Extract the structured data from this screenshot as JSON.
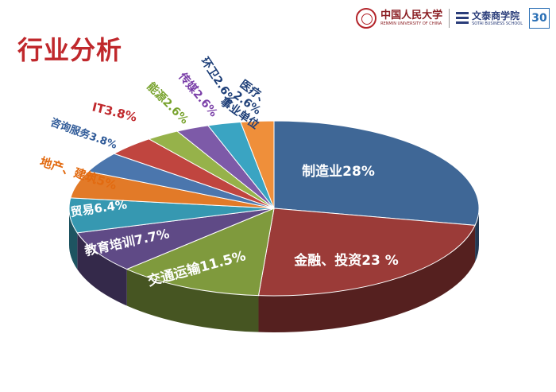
{
  "slide": {
    "title": "行业分析",
    "logo_ruc_cn": "中国人民大学",
    "logo_ruc_en": "RENMIN UNIVERSITY OF CHINA",
    "logo_biz_cn": "文泰商学院",
    "logo_biz_en": "SOTAI BUSINESS SCHOOL",
    "logo_anniv": "30"
  },
  "chart_data": {
    "type": "pie",
    "title": "",
    "slices": [
      {
        "label": "制造业28%",
        "value": 28,
        "color": "#3f6796",
        "label_color": "#ffffff"
      },
      {
        "label": "金融、投资23 %",
        "value": 23,
        "color": "#9b3b38",
        "label_color": "#ffffff"
      },
      {
        "label": "交通运输11.5%",
        "value": 11.5,
        "color": "#7f9a3d",
        "label_color": "#ffffff"
      },
      {
        "label": "教育培训7.7%",
        "value": 7.7,
        "color": "#5f4a86",
        "label_color": "#ffffff"
      },
      {
        "label": "贸易6.4%",
        "value": 6.4,
        "color": "#3698b1",
        "label_color": "#ffffff"
      },
      {
        "label": "地产、建筑5%",
        "value": 5,
        "color": "#e27a28",
        "label_color": "#e26a10"
      },
      {
        "label": "咨询服务3.8%",
        "value": 3.8,
        "color": "#4b76ad",
        "label_color": "#2f5a98"
      },
      {
        "label": "IT3.8%",
        "value": 3.8,
        "color": "#c0453f",
        "label_color": "#c0282c"
      },
      {
        "label": "能源2.6%",
        "value": 2.6,
        "color": "#96b24a",
        "label_color": "#77a22c"
      },
      {
        "label": "传媒2.6%",
        "value": 2.6,
        "color": "#7d5aa8",
        "label_color": "#7a3fa8"
      },
      {
        "label": "环卫2.6%",
        "value": 2.6,
        "color": "#3aa4c2",
        "label_color": "#1e3f78"
      },
      {
        "label": "医疗、事业单位2.6%",
        "label_parts": [
          "医疗、",
          "2.6%",
          "事业单位"
        ],
        "value": 2.6,
        "color": "#ef8f3a",
        "label_color": "#1e3f78"
      }
    ]
  }
}
